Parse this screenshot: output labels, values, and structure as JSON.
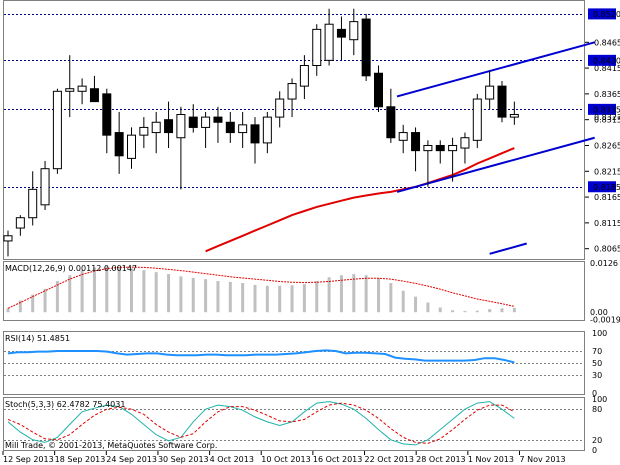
{
  "colors": {
    "bull_fill": "#ffffff",
    "bear_fill": "#000000",
    "candle_outline": "#000000",
    "ma_red": "#e00000",
    "trend_blue": "#0000d0",
    "macd_hist": "#c0c0c0",
    "macd_signal": "#e00000",
    "rsi": "#1e90ff",
    "stoch_main": "#20b2aa",
    "stoch_signal": "#e00000",
    "hline": "#000080",
    "price_box": "#0000d0",
    "price_box_text": "#ffffff"
  },
  "chart_data": [
    {
      "type": "candlestick",
      "y_range": [
        0.8045,
        0.8545
      ],
      "candles": [
        {
          "o": 0.808,
          "h": 0.81,
          "l": 0.805,
          "c": 0.809
        },
        {
          "o": 0.8105,
          "h": 0.813,
          "l": 0.809,
          "c": 0.8125
        },
        {
          "o": 0.8125,
          "h": 0.8215,
          "l": 0.811,
          "c": 0.818
        },
        {
          "o": 0.815,
          "h": 0.8235,
          "l": 0.814,
          "c": 0.822
        },
        {
          "o": 0.822,
          "h": 0.8375,
          "l": 0.821,
          "c": 0.837
        },
        {
          "o": 0.837,
          "h": 0.844,
          "l": 0.832,
          "c": 0.8375
        },
        {
          "o": 0.837,
          "h": 0.8395,
          "l": 0.8345,
          "c": 0.838
        },
        {
          "o": 0.8375,
          "h": 0.84,
          "l": 0.835,
          "c": 0.835
        },
        {
          "o": 0.8365,
          "h": 0.8375,
          "l": 0.825,
          "c": 0.8285
        },
        {
          "o": 0.829,
          "h": 0.833,
          "l": 0.821,
          "c": 0.8245
        },
        {
          "o": 0.824,
          "h": 0.83,
          "l": 0.822,
          "c": 0.8285
        },
        {
          "o": 0.8285,
          "h": 0.832,
          "l": 0.826,
          "c": 0.83
        },
        {
          "o": 0.829,
          "h": 0.833,
          "l": 0.825,
          "c": 0.831
        },
        {
          "o": 0.8315,
          "h": 0.835,
          "l": 0.826,
          "c": 0.829
        },
        {
          "o": 0.828,
          "h": 0.834,
          "l": 0.818,
          "c": 0.8325
        },
        {
          "o": 0.832,
          "h": 0.8345,
          "l": 0.829,
          "c": 0.83
        },
        {
          "o": 0.83,
          "h": 0.833,
          "l": 0.826,
          "c": 0.832
        },
        {
          "o": 0.832,
          "h": 0.834,
          "l": 0.827,
          "c": 0.831
        },
        {
          "o": 0.831,
          "h": 0.833,
          "l": 0.827,
          "c": 0.829
        },
        {
          "o": 0.829,
          "h": 0.833,
          "l": 0.826,
          "c": 0.8305
        },
        {
          "o": 0.8305,
          "h": 0.832,
          "l": 0.823,
          "c": 0.827
        },
        {
          "o": 0.827,
          "h": 0.833,
          "l": 0.825,
          "c": 0.832
        },
        {
          "o": 0.832,
          "h": 0.837,
          "l": 0.83,
          "c": 0.8355
        },
        {
          "o": 0.8355,
          "h": 0.8395,
          "l": 0.832,
          "c": 0.8385
        },
        {
          "o": 0.838,
          "h": 0.844,
          "l": 0.8355,
          "c": 0.842
        },
        {
          "o": 0.842,
          "h": 0.85,
          "l": 0.84,
          "c": 0.849
        },
        {
          "o": 0.843,
          "h": 0.853,
          "l": 0.842,
          "c": 0.85
        },
        {
          "o": 0.849,
          "h": 0.8515,
          "l": 0.843,
          "c": 0.8475
        },
        {
          "o": 0.847,
          "h": 0.853,
          "l": 0.844,
          "c": 0.8505
        },
        {
          "o": 0.851,
          "h": 0.852,
          "l": 0.839,
          "c": 0.84
        },
        {
          "o": 0.8405,
          "h": 0.842,
          "l": 0.833,
          "c": 0.834
        },
        {
          "o": 0.834,
          "h": 0.8375,
          "l": 0.827,
          "c": 0.828
        },
        {
          "o": 0.8275,
          "h": 0.8305,
          "l": 0.825,
          "c": 0.829
        },
        {
          "o": 0.829,
          "h": 0.83,
          "l": 0.8215,
          "c": 0.8255
        },
        {
          "o": 0.8255,
          "h": 0.8275,
          "l": 0.8185,
          "c": 0.8265
        },
        {
          "o": 0.8265,
          "h": 0.8275,
          "l": 0.823,
          "c": 0.8255
        },
        {
          "o": 0.8255,
          "h": 0.828,
          "l": 0.8195,
          "c": 0.8265
        },
        {
          "o": 0.826,
          "h": 0.829,
          "l": 0.823,
          "c": 0.828
        },
        {
          "o": 0.8275,
          "h": 0.8365,
          "l": 0.826,
          "c": 0.8355
        },
        {
          "o": 0.8355,
          "h": 0.841,
          "l": 0.8335,
          "c": 0.838
        },
        {
          "o": 0.838,
          "h": 0.839,
          "l": 0.831,
          "c": 0.832
        },
        {
          "o": 0.832,
          "h": 0.835,
          "l": 0.8305,
          "c": 0.8325
        }
      ],
      "ma": [
        null,
        null,
        null,
        null,
        null,
        null,
        null,
        null,
        null,
        null,
        null,
        null,
        null,
        null,
        null,
        null,
        0.806,
        0.807,
        0.808,
        0.809,
        0.81,
        0.811,
        0.812,
        0.813,
        0.8138,
        0.8146,
        0.8152,
        0.8158,
        0.8164,
        0.8168,
        0.8172,
        0.8175,
        0.818,
        0.8185,
        0.8192,
        0.82,
        0.8208,
        0.8218,
        0.823,
        0.824,
        0.825,
        0.826
      ],
      "price_levels": [
        {
          "price": 0.852,
          "label": "0.8520"
        },
        {
          "price": 0.843,
          "label": "0.8430"
        },
        {
          "price": 0.8335,
          "label": "0.8335"
        },
        {
          "price": 0.8185,
          "label": "0.8185"
        }
      ],
      "trendlines": [
        {
          "x1": 31.5,
          "y1": 0.836,
          "x2": 47.5,
          "y2": 0.8465
        },
        {
          "x1": 31.5,
          "y1": 0.8175,
          "x2": 47.5,
          "y2": 0.828
        },
        {
          "x1": 39.0,
          "y1": 0.8055,
          "x2": 42.0,
          "y2": 0.8075
        }
      ],
      "ticks": [
        "0.8465",
        "0.8415",
        "0.8365",
        "0.8315",
        "0.8265",
        "0.8215",
        "0.8165",
        "0.8115",
        "0.8065"
      ],
      "current_price": "0.8327"
    },
    {
      "type": "bar",
      "name": "MACD(12,26,9)",
      "header": "MACD(12,26,9) 0.00112 0.00147",
      "y_range": [
        -0.002,
        0.0129
      ],
      "histogram": [
        0.001,
        0.003,
        0.0045,
        0.006,
        0.008,
        0.0095,
        0.0108,
        0.0115,
        0.0118,
        0.0117,
        0.0113,
        0.0108,
        0.0103,
        0.0098,
        0.0092,
        0.0088,
        0.0085,
        0.008,
        0.0078,
        0.0075,
        0.007,
        0.0068,
        0.0068,
        0.0069,
        0.0072,
        0.008,
        0.009,
        0.0095,
        0.0098,
        0.0095,
        0.0088,
        0.0075,
        0.0055,
        0.004,
        0.0025,
        0.0012,
        0.0005,
        0.0003,
        0.0004,
        0.0008,
        0.001,
        0.0011
      ],
      "signal": [
        0.001,
        0.0025,
        0.004,
        0.0055,
        0.007,
        0.0085,
        0.0097,
        0.0106,
        0.0112,
        0.0115,
        0.0116,
        0.0115,
        0.0113,
        0.011,
        0.0107,
        0.0103,
        0.0099,
        0.0095,
        0.0091,
        0.0088,
        0.0085,
        0.0082,
        0.0079,
        0.0077,
        0.0076,
        0.0077,
        0.0079,
        0.0082,
        0.0085,
        0.0087,
        0.0087,
        0.0085,
        0.008,
        0.0074,
        0.0067,
        0.0059,
        0.005,
        0.0042,
        0.0034,
        0.0028,
        0.0022,
        0.0015
      ],
      "ticks": [
        "0.0126",
        "0.00",
        "-0.00192"
      ]
    },
    {
      "type": "line",
      "name": "RSI(14)",
      "header": "RSI(14) 51.4851",
      "y_range": [
        0,
        100
      ],
      "values": [
        66,
        68,
        68,
        69,
        69,
        70,
        70,
        70,
        70,
        70,
        69,
        66,
        64,
        65,
        66,
        66,
        64,
        63,
        63,
        63,
        64,
        64,
        63,
        63,
        63,
        64,
        64,
        64,
        65,
        66,
        68,
        70,
        71,
        70,
        66,
        67,
        67,
        66,
        65,
        59,
        57,
        56,
        54,
        54,
        54,
        54,
        54,
        55,
        58,
        58,
        55,
        51
      ],
      "levels": [
        70,
        50,
        30
      ],
      "ticks": [
        "100",
        "70",
        "50",
        "30",
        "0"
      ]
    },
    {
      "type": "line",
      "name": "Stoch(5,3,3)",
      "header": "Stoch(5,3,3) 62.4782 75.4031",
      "y_range": [
        0,
        100
      ],
      "main": [
        55,
        35,
        20,
        15,
        25,
        50,
        75,
        82,
        88,
        85,
        70,
        50,
        30,
        18,
        25,
        55,
        80,
        88,
        85,
        78,
        65,
        55,
        48,
        55,
        75,
        92,
        95,
        90,
        80,
        62,
        40,
        20,
        12,
        10,
        20,
        40,
        60,
        80,
        92,
        95,
        80,
        62
      ],
      "signal": [
        60,
        50,
        35,
        22,
        20,
        30,
        50,
        68,
        80,
        84,
        80,
        70,
        50,
        35,
        25,
        32,
        55,
        75,
        85,
        85,
        78,
        68,
        57,
        55,
        60,
        75,
        88,
        92,
        88,
        78,
        62,
        42,
        25,
        15,
        13,
        22,
        40,
        60,
        78,
        88,
        88,
        75
      ],
      "levels": [
        80,
        20
      ],
      "ticks": [
        "100",
        "80",
        "20",
        "0"
      ]
    }
  ],
  "dates": [
    "12 Sep 2013",
    "18 Sep 2013",
    "24 Sep 2013",
    "30 Sep 2013",
    "4 Oct 2013",
    "10 Oct 2013",
    "16 Oct 2013",
    "22 Oct 2013",
    "28 Oct 2013",
    "1 Nov 2013",
    "7 Nov 2013"
  ],
  "copyright": "Mill Trade, © 2001-2013, MetaQuotes Software Corp."
}
